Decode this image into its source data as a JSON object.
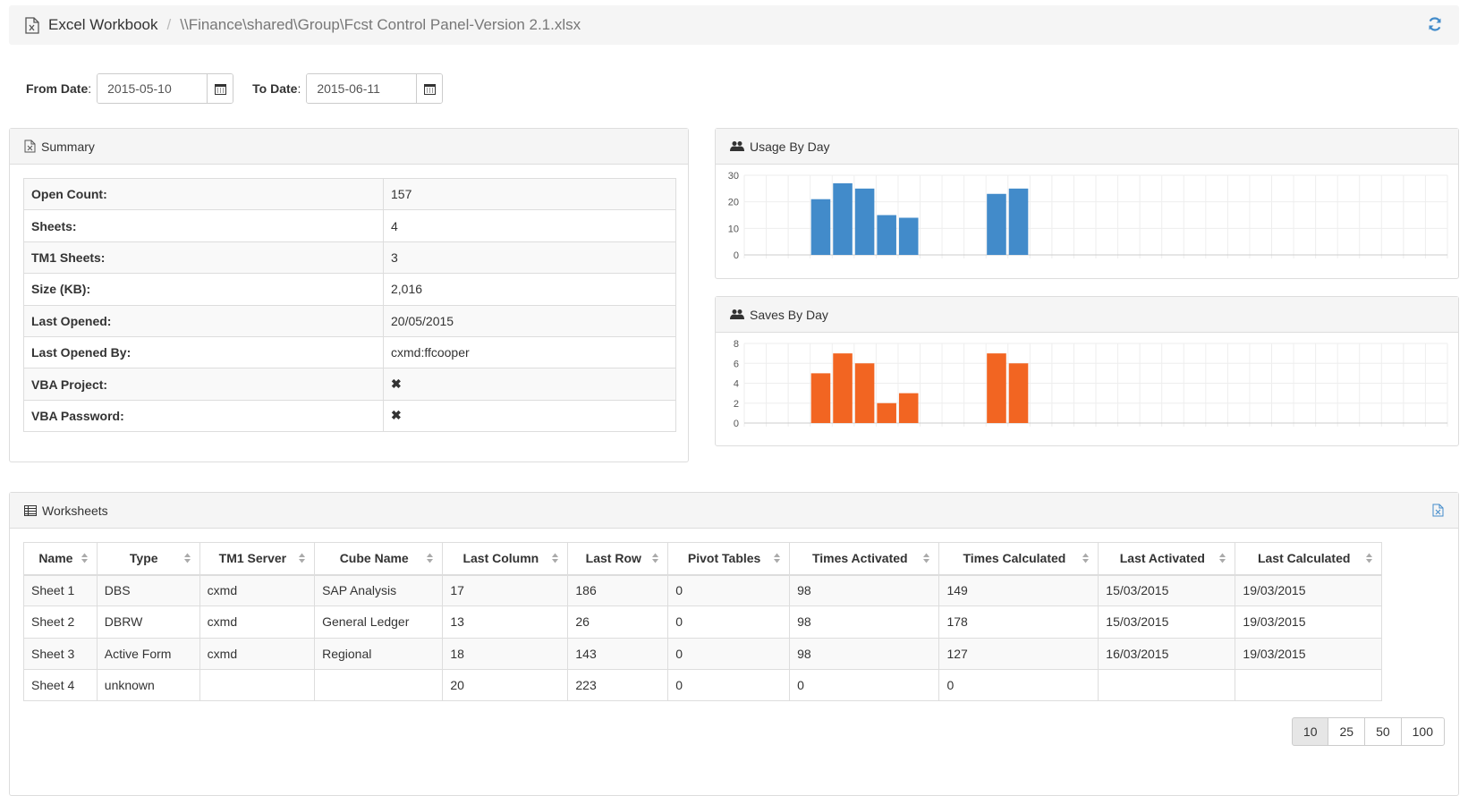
{
  "breadcrumb": {
    "title": "Excel Workbook",
    "separator": "/",
    "path": "\\\\Finance\\shared\\Group\\Fcst Control Panel-Version 2.1.xlsx"
  },
  "filters": {
    "from_label": "From Date",
    "from_value": "2015-05-10",
    "to_label": "To Date",
    "to_value": "2015-06-11",
    "colon": ":"
  },
  "summary": {
    "title": "Summary",
    "rows": [
      {
        "label": "Open Count:",
        "value": "157"
      },
      {
        "label": "Sheets:",
        "value": "4"
      },
      {
        "label": "TM1 Sheets:",
        "value": "3"
      },
      {
        "label": "Size (KB):",
        "value": "2,016"
      },
      {
        "label": "Last Opened:",
        "value": "20/05/2015"
      },
      {
        "label": "Last Opened By:",
        "value": "cxmd:ffcooper"
      },
      {
        "label": "VBA Project:",
        "value": "✖"
      },
      {
        "label": "VBA Password:",
        "value": "✖"
      }
    ]
  },
  "chart_data": [
    {
      "type": "bar",
      "title": "Usage By Day",
      "color": "#428bca",
      "ylim": [
        0,
        30
      ],
      "yticks": [
        0,
        10,
        20,
        30
      ],
      "grid": true,
      "x": [
        1,
        2,
        3,
        4,
        5,
        6,
        7,
        8,
        9,
        10,
        11,
        12,
        13,
        14,
        15,
        16,
        17,
        18,
        19,
        20,
        21,
        22,
        23,
        24,
        25,
        26,
        27,
        28,
        29,
        30,
        31,
        32
      ],
      "values": [
        0,
        0,
        0,
        21,
        27,
        25,
        15,
        14,
        0,
        0,
        0,
        23,
        25,
        0,
        0,
        0,
        0,
        0,
        0,
        0,
        0,
        0,
        0,
        0,
        0,
        0,
        0,
        0,
        0,
        0,
        0,
        0
      ]
    },
    {
      "type": "bar",
      "title": "Saves By Day",
      "color": "#f26522",
      "ylim": [
        0,
        8
      ],
      "yticks": [
        0,
        2,
        4,
        6,
        8
      ],
      "grid": true,
      "x": [
        1,
        2,
        3,
        4,
        5,
        6,
        7,
        8,
        9,
        10,
        11,
        12,
        13,
        14,
        15,
        16,
        17,
        18,
        19,
        20,
        21,
        22,
        23,
        24,
        25,
        26,
        27,
        28,
        29,
        30,
        31,
        32
      ],
      "values": [
        0,
        0,
        0,
        5,
        7,
        6,
        2,
        3,
        0,
        0,
        0,
        7,
        6,
        0,
        0,
        0,
        0,
        0,
        0,
        0,
        0,
        0,
        0,
        0,
        0,
        0,
        0,
        0,
        0,
        0,
        0,
        0
      ]
    }
  ],
  "worksheets": {
    "title": "Worksheets",
    "columns": [
      "Name",
      "Type",
      "TM1 Server",
      "Cube Name",
      "Last Column",
      "Last Row",
      "Pivot Tables",
      "Times Activated",
      "Times Calculated",
      "Last Activated",
      "Last Calculated"
    ],
    "rows": [
      [
        "Sheet 1",
        "DBS",
        "cxmd",
        "SAP Analysis",
        "17",
        "186",
        "0",
        "98",
        "149",
        "15/03/2015",
        "19/03/2015"
      ],
      [
        "Sheet 2",
        "DBRW",
        "cxmd",
        "General Ledger",
        "13",
        "26",
        "0",
        "98",
        "178",
        "15/03/2015",
        "19/03/2015"
      ],
      [
        "Sheet 3",
        "Active Form",
        "cxmd",
        "Regional",
        "18",
        "143",
        "0",
        "98",
        "127",
        "16/03/2015",
        "19/03/2015"
      ],
      [
        "Sheet 4",
        "unknown",
        "",
        "",
        "20",
        "223",
        "0",
        "0",
        "0",
        "",
        ""
      ]
    ],
    "page_sizes": [
      "10",
      "25",
      "50",
      "100"
    ],
    "active_page_size": "10"
  }
}
